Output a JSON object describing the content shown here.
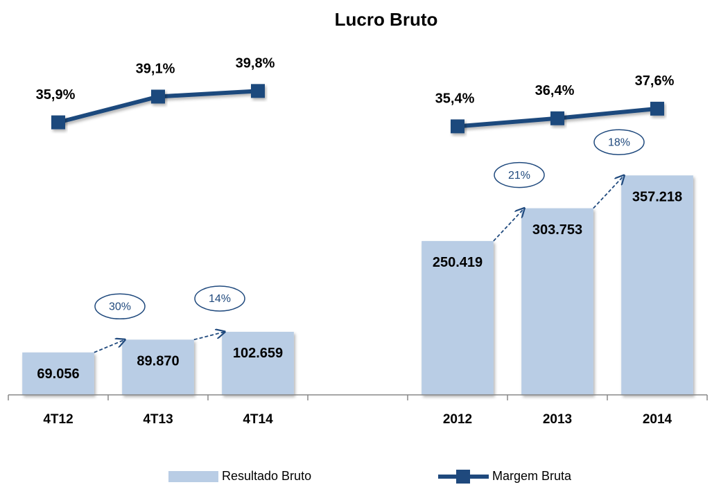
{
  "chart_data": {
    "type": "bar-line",
    "title": "Lucro Bruto",
    "categories": [
      "4T12",
      "4T13",
      "4T14",
      null,
      "2012",
      "2013",
      "2014"
    ],
    "series": [
      {
        "name": "Resultado Bruto",
        "type": "bar",
        "color": "#b9cde5",
        "values": [
          69056,
          89870,
          102659,
          null,
          250419,
          303753,
          357218
        ],
        "value_labels": [
          "69.056",
          "89.870",
          "102.659",
          null,
          "250.419",
          "303.753",
          "357.218"
        ]
      },
      {
        "name": "Margem Bruta",
        "type": "line",
        "axis": "y2",
        "color": "#1f497d",
        "values": [
          35.9,
          39.1,
          39.8,
          null,
          35.4,
          36.4,
          37.6
        ],
        "value_labels": [
          "35,9%",
          "39,1%",
          "39,8%",
          null,
          "35,4%",
          "36,4%",
          "37,6%"
        ]
      }
    ],
    "annotations": [
      "30%",
      "14%",
      "21%",
      "18%"
    ],
    "ylim": [
      0,
      530000
    ],
    "y2lim": [
      2,
      42.5
    ],
    "legend": "bottom"
  }
}
